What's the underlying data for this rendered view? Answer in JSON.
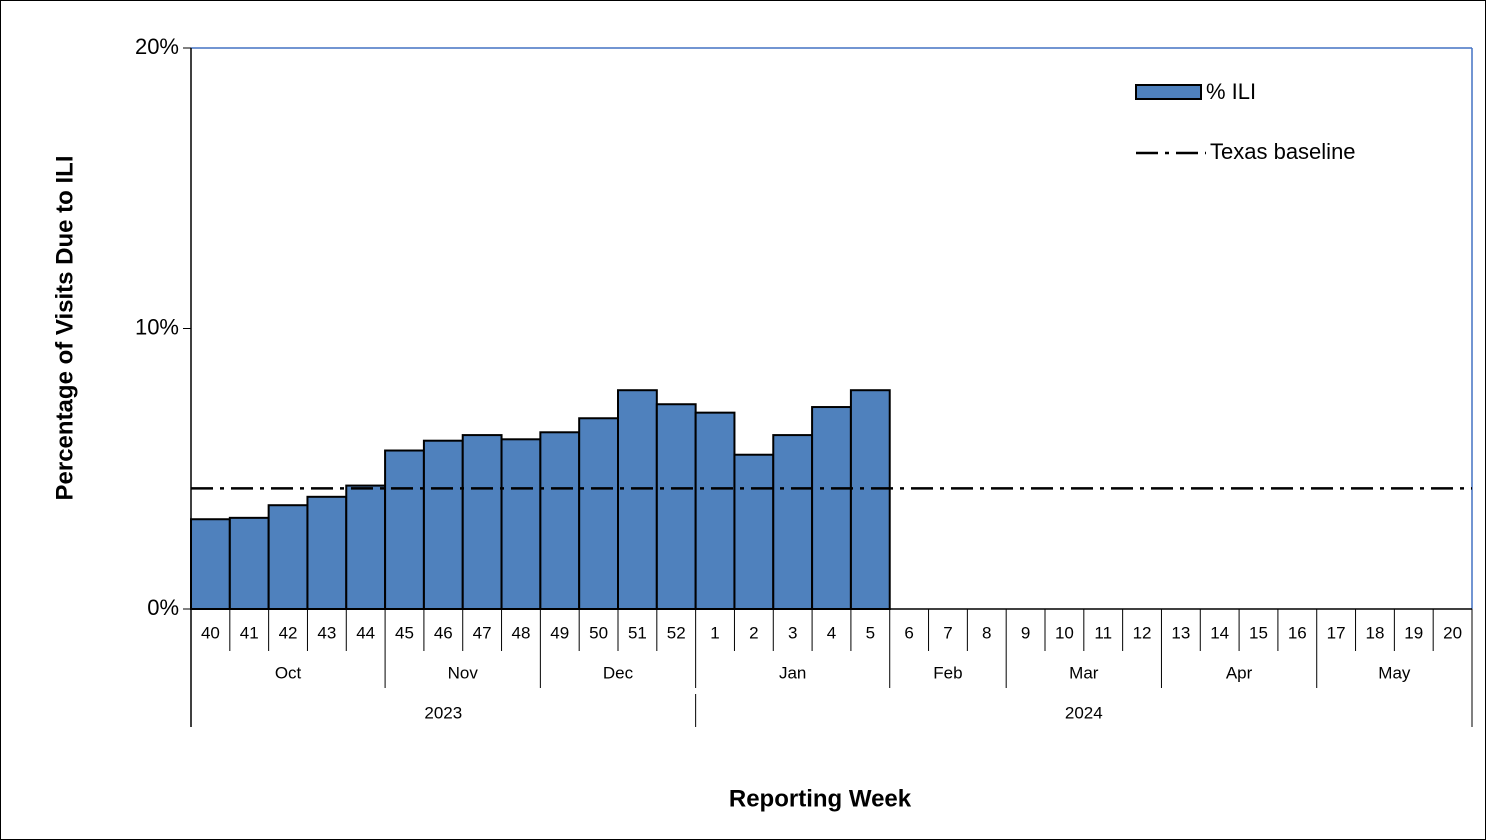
{
  "chart_data": {
    "type": "bar",
    "x_label": "Reporting Week",
    "y_label": "Percentage of Visits Due to ILI",
    "categories": [
      "40",
      "41",
      "42",
      "43",
      "44",
      "45",
      "46",
      "47",
      "48",
      "49",
      "50",
      "51",
      "52",
      "1",
      "2",
      "3",
      "4",
      "5",
      "6",
      "7",
      "8",
      "9",
      "10",
      "11",
      "12",
      "13",
      "14",
      "15",
      "16",
      "17",
      "18",
      "19",
      "20"
    ],
    "month_groups": [
      {
        "label": "Oct",
        "span": 5
      },
      {
        "label": "Nov",
        "span": 4
      },
      {
        "label": "Dec",
        "span": 4
      },
      {
        "label": "Jan",
        "span": 5
      },
      {
        "label": "Feb",
        "span": 3
      },
      {
        "label": "Mar",
        "span": 4
      },
      {
        "label": "Apr",
        "span": 4
      },
      {
        "label": "May",
        "span": 4
      }
    ],
    "year_groups": [
      {
        "label": "2023",
        "span": 13
      },
      {
        "label": "2024",
        "span": 20
      }
    ],
    "series": [
      {
        "name": "% ILI",
        "color": "#4f81bd",
        "values": [
          3.2,
          3.25,
          3.7,
          4.0,
          4.4,
          5.65,
          6.0,
          6.2,
          6.05,
          6.3,
          6.8,
          7.8,
          7.3,
          7.0,
          5.5,
          6.2,
          7.2,
          7.8,
          null,
          null,
          null,
          null,
          null,
          null,
          null,
          null,
          null,
          null,
          null,
          null,
          null,
          null,
          null
        ]
      }
    ],
    "baseline": {
      "name": "Texas baseline",
      "value": 4.3,
      "color": "#000000"
    },
    "ylim": [
      0,
      20
    ],
    "yticks": [
      {
        "value": 0,
        "label": "0%"
      },
      {
        "value": 10,
        "label": "10%"
      },
      {
        "value": 20,
        "label": "20%"
      }
    ],
    "legend": "top-right"
  }
}
